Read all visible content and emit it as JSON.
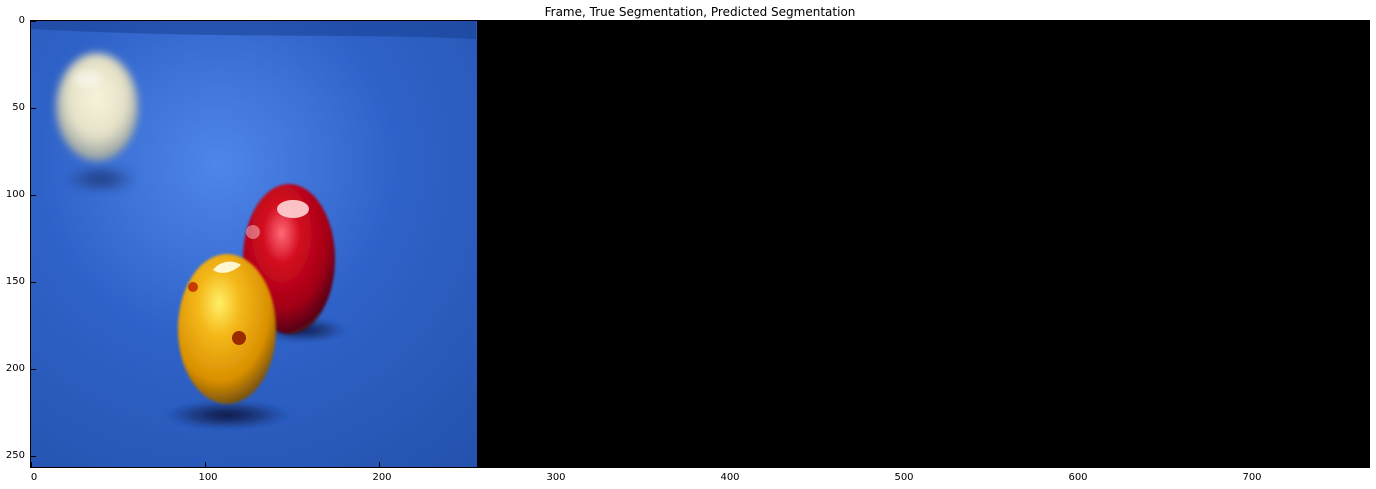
{
  "figure": {
    "title": "Frame, True Segmentation, Predicted Segmentation"
  },
  "axes": {
    "x_ticks": [
      "0",
      "100",
      "200",
      "300",
      "400",
      "500",
      "600",
      "700"
    ],
    "y_ticks": [
      "0",
      "50",
      "100",
      "150",
      "200",
      "250"
    ]
  },
  "panels": [
    {
      "name": "Frame",
      "content": "photo of billiard balls on blue table"
    },
    {
      "name": "True Segmentation",
      "content": "black"
    },
    {
      "name": "Predicted Segmentation",
      "content": "black"
    }
  ],
  "colors": {
    "table": "#2f62c8",
    "segmentation_background": "#000000",
    "ball_white": "#f0f0d8",
    "ball_red": "#c00018",
    "ball_yellow": "#f0b000"
  }
}
